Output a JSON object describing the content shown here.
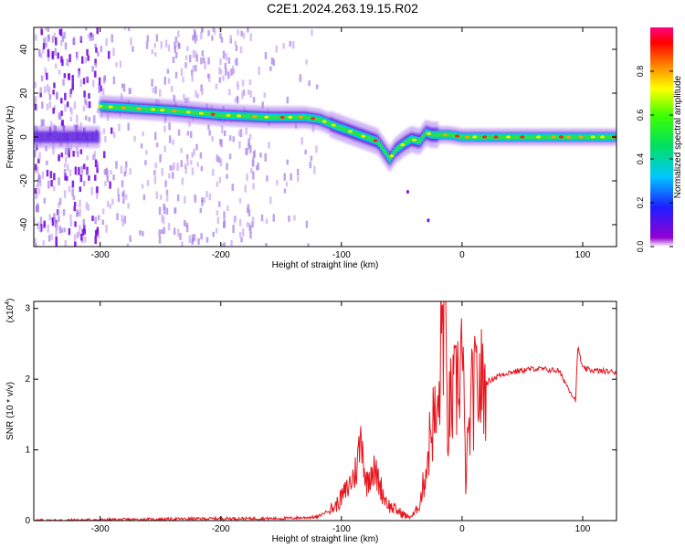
{
  "title": "C2E1.2024.263.19.15.R02",
  "chart_data": [
    {
      "type": "heatmap",
      "xlabel": "Height of straight line (km)",
      "ylabel": "Frequency (Hz)",
      "xlim": [
        -355,
        128
      ],
      "ylim": [
        -50,
        50
      ],
      "xticks": [
        -300,
        -200,
        -100,
        0,
        100
      ],
      "yticks": [
        -40,
        -20,
        0,
        20,
        40
      ],
      "colorbar": {
        "label": "Normalized spectral amplitude",
        "range": [
          0,
          1
        ],
        "ticks": [
          "0.0",
          "0.2",
          "0.4",
          "0.6",
          "0.8"
        ],
        "colormap": "rainbow (violet-blue-cyan-green-yellow-orange-red-magenta)"
      },
      "ridge": {
        "x": [
          -300,
          -270,
          -240,
          -200,
          -160,
          -130,
          -118,
          -105,
          -95,
          -80,
          -70,
          -60,
          -55,
          -48,
          -42,
          -35,
          -30,
          -25,
          -10,
          0,
          50,
          128
        ],
        "frequency": [
          14,
          13,
          12,
          10,
          9,
          9,
          8,
          5,
          3,
          0,
          -2,
          -10,
          -6,
          -3,
          -1,
          -2,
          2,
          1,
          1,
          0,
          0,
          0
        ]
      }
    },
    {
      "type": "line",
      "xlabel": "Height of straight line (km)",
      "ylabel": "SNR (10 * v/v)",
      "yscale_label": "(x10",
      "yscale_exp": "4",
      "xlim": [
        -355,
        128
      ],
      "ylim": [
        0,
        3.1
      ],
      "xticks": [
        -300,
        -200,
        -100,
        0,
        100
      ],
      "yticks": [
        0,
        1,
        2,
        3
      ],
      "series": [
        {
          "color": "#e8141c",
          "x": [
            -355,
            -300,
            -250,
            -200,
            -150,
            -120,
            -105,
            -95,
            -88,
            -83,
            -80,
            -75,
            -70,
            -65,
            -60,
            -55,
            -50,
            -45,
            -40,
            -35,
            -30,
            -25,
            -20,
            -17,
            -15,
            -12,
            -10,
            -5,
            0,
            3,
            8,
            12,
            20,
            30,
            40,
            60,
            80,
            94,
            96,
            100,
            110,
            128
          ],
          "y": [
            0.0,
            0.01,
            0.02,
            0.03,
            0.03,
            0.05,
            0.2,
            0.45,
            0.7,
            1.25,
            0.5,
            0.75,
            0.6,
            0.35,
            0.2,
            0.15,
            0.1,
            0.05,
            0.08,
            0.25,
            0.7,
            1.4,
            1.4,
            2.6,
            3.1,
            1.3,
            1.6,
            1.8,
            2.45,
            0.6,
            1.7,
            1.9,
            1.95,
            2.05,
            2.1,
            2.15,
            2.12,
            1.7,
            2.45,
            2.15,
            2.12,
            2.1
          ]
        }
      ]
    }
  ]
}
